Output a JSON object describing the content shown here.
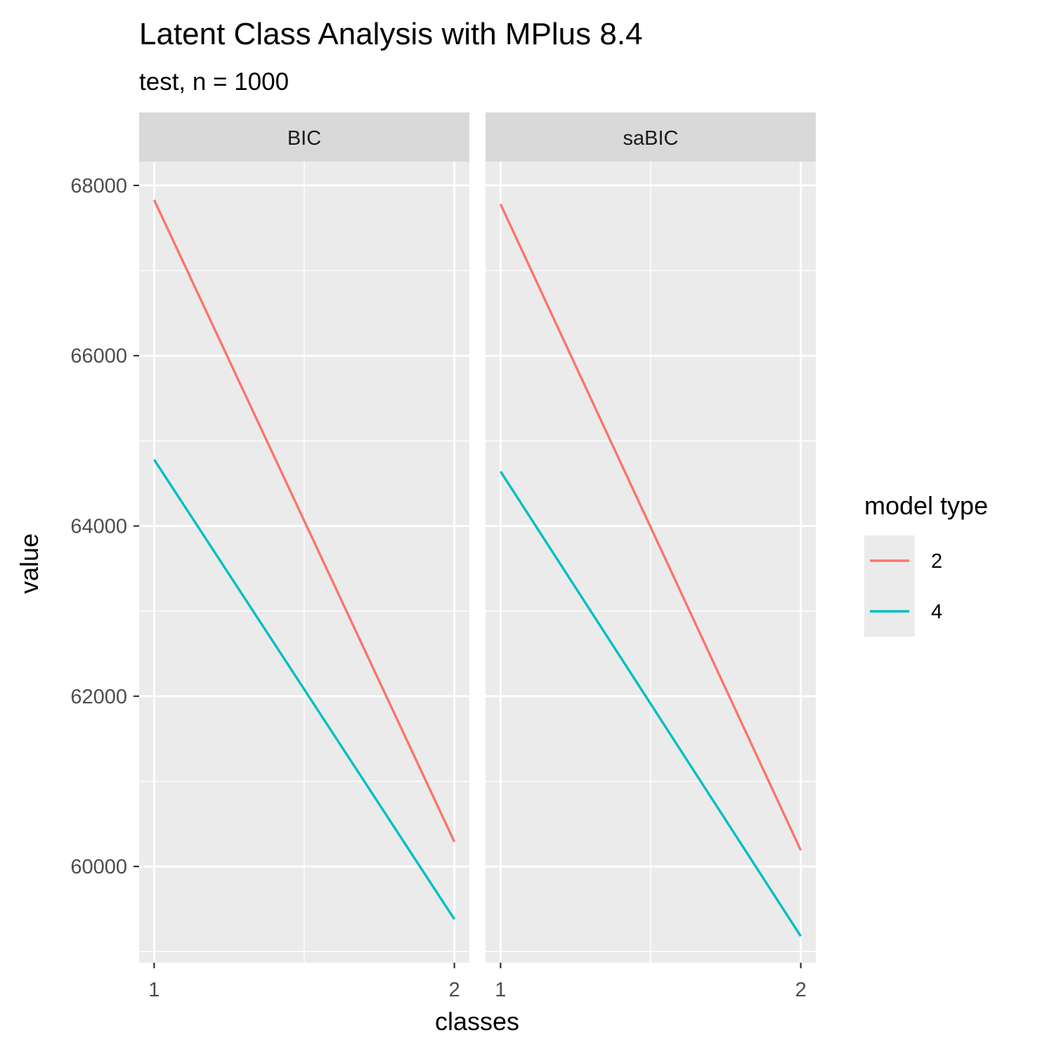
{
  "chart_data": {
    "type": "line",
    "title": "Latent Class Analysis with MPlus 8.4",
    "subtitle": "test, n = 1000",
    "xlabel": "classes",
    "ylabel": "value",
    "x": [
      1,
      2
    ],
    "x_tick_labels": [
      "1",
      "2"
    ],
    "y_ticks": [
      60000,
      62000,
      64000,
      66000,
      68000
    ],
    "y_tick_labels": [
      "60000",
      "62000",
      "64000",
      "66000",
      "68000"
    ],
    "ylim": [
      58870,
      68280
    ],
    "xlim": [
      0.95,
      2.05
    ],
    "grid": true,
    "legend": {
      "title": "model type",
      "placement": "right",
      "entries": [
        {
          "label": "2",
          "color": "#F8766D"
        },
        {
          "label": "4",
          "color": "#00BFC4"
        }
      ]
    },
    "facets": [
      {
        "label": "BIC",
        "series": [
          {
            "name": "2",
            "color": "#F8766D",
            "values": [
              67830,
              60290
            ]
          },
          {
            "name": "4",
            "color": "#00BFC4",
            "values": [
              64780,
              59380
            ]
          }
        ]
      },
      {
        "label": "saBIC",
        "series": [
          {
            "name": "2",
            "color": "#F8766D",
            "values": [
              67780,
              60190
            ]
          },
          {
            "name": "4",
            "color": "#00BFC4",
            "values": [
              64640,
              59180
            ]
          }
        ]
      }
    ]
  }
}
